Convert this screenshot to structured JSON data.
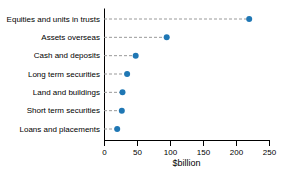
{
  "chart_data": {
    "type": "lollipop",
    "orientation": "horizontal",
    "categories": [
      "Loans and placements",
      "Short term securities",
      "Land and buildings",
      "Long term securities",
      "Cash and deposits",
      "Assets overseas",
      "Equities and units in trusts"
    ],
    "values": [
      20,
      27,
      28,
      35,
      48,
      95,
      220
    ],
    "xlabel": "$billion",
    "xlim": [
      0,
      250
    ],
    "xticks": [
      0,
      50,
      100,
      150,
      200,
      250
    ],
    "marker": "circle",
    "line_style": "dashed"
  }
}
